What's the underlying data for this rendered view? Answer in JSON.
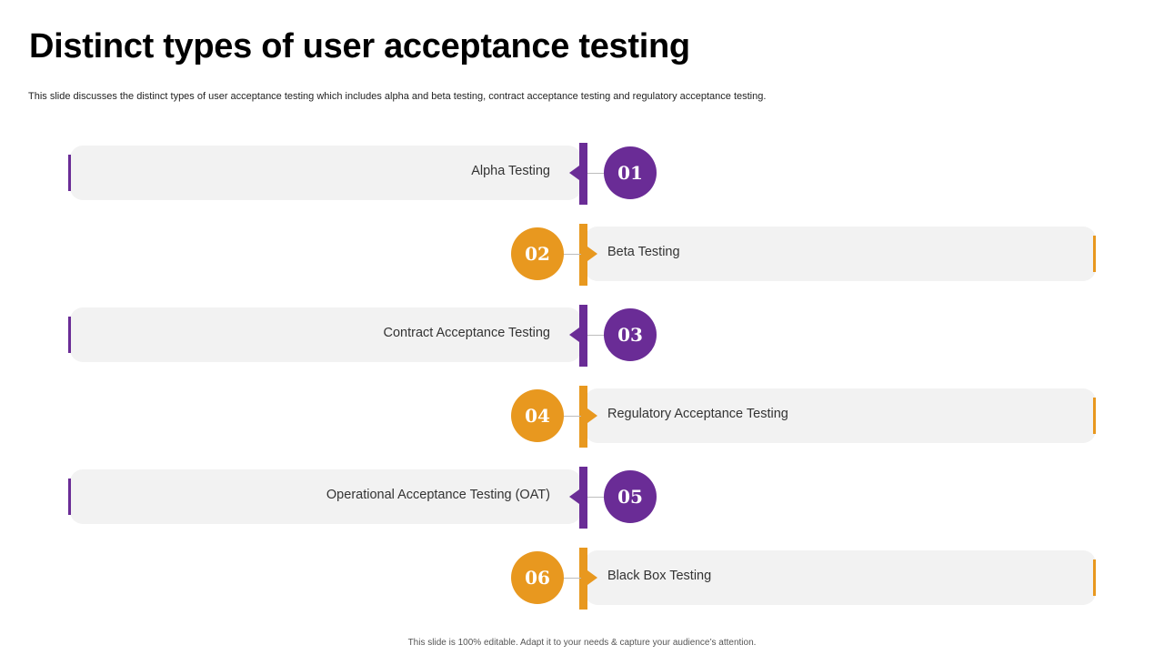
{
  "slide": {
    "title": "Distinct types of user acceptance testing",
    "subtitle": "This slide discusses the distinct types of user acceptance testing which includes alpha and beta testing, contract acceptance testing and regulatory acceptance testing.",
    "footer": "This slide is 100% editable. Adapt it to your needs & capture your audience’s attention."
  },
  "colors": {
    "purple": "#6a2c96",
    "orange": "#e8981f",
    "bar_bg": "#f2f2f2"
  },
  "items": [
    {
      "number": "01",
      "label": "Alpha Testing",
      "side": "left",
      "color": "purple"
    },
    {
      "number": "02",
      "label": "Beta Testing",
      "side": "right",
      "color": "orange"
    },
    {
      "number": "03",
      "label": "Contract Acceptance Testing",
      "side": "left",
      "color": "purple"
    },
    {
      "number": "04",
      "label": "Regulatory Acceptance Testing",
      "side": "right",
      "color": "orange"
    },
    {
      "number": "05",
      "label": "Operational Acceptance Testing (OAT)",
      "side": "left",
      "color": "purple"
    },
    {
      "number": "06",
      "label": "Black Box Testing",
      "side": "right",
      "color": "orange"
    }
  ]
}
